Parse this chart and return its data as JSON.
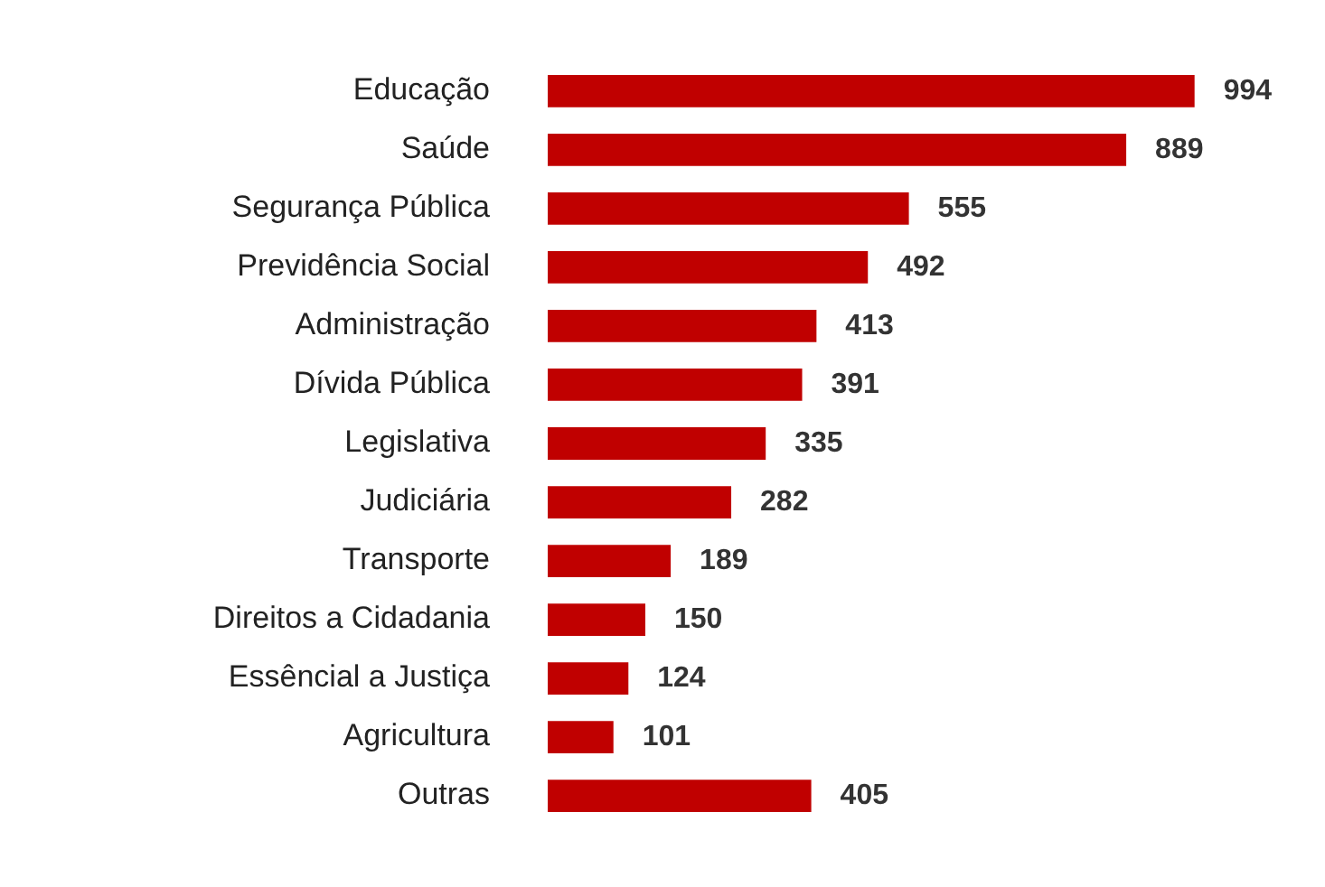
{
  "chart_data": {
    "type": "bar",
    "orientation": "horizontal",
    "categories": [
      "Educação",
      "Saúde",
      "Segurança Pública",
      "Previdência Social",
      "Administração",
      "Dívida Pública",
      "Legislativa",
      "Judiciária",
      "Transporte",
      "Direitos a Cidadania",
      "Essêncial a Justiça",
      "Agricultura",
      "Outras"
    ],
    "values": [
      994,
      889,
      555,
      492,
      413,
      391,
      335,
      282,
      189,
      150,
      124,
      101,
      405
    ],
    "color": "#c00000",
    "data_labels": true
  }
}
